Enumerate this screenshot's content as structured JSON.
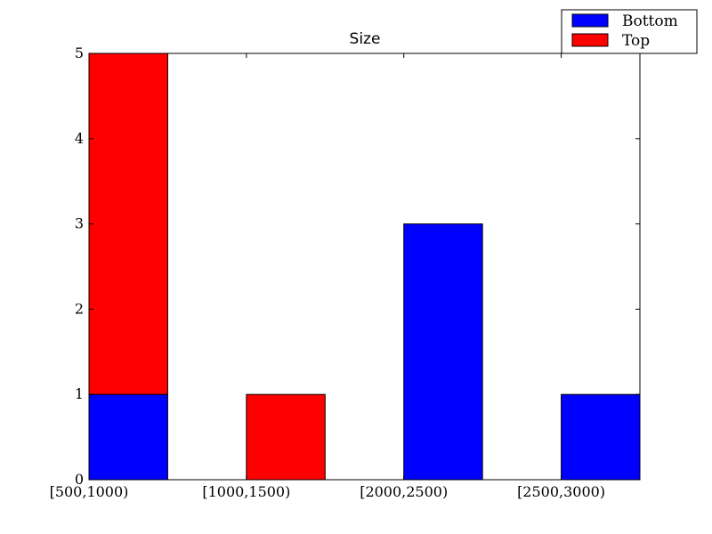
{
  "chart_data": {
    "type": "bar",
    "stacked": true,
    "title": "Size",
    "xlabel": "",
    "ylabel": "",
    "categories": [
      "[500,1000)",
      "[1000,1500)",
      "[2000,2500)",
      "[2500,3000)"
    ],
    "series": [
      {
        "name": "Bottom",
        "color": "#0000ff",
        "values": [
          1,
          0,
          3,
          1
        ]
      },
      {
        "name": "Top",
        "color": "#ff0000",
        "values": [
          4,
          1,
          0,
          0
        ]
      }
    ],
    "ylim": [
      0,
      5
    ],
    "yticks": [
      "0",
      "1",
      "2",
      "3",
      "4",
      "5"
    ],
    "grid": false,
    "legend_position": "top-right"
  }
}
